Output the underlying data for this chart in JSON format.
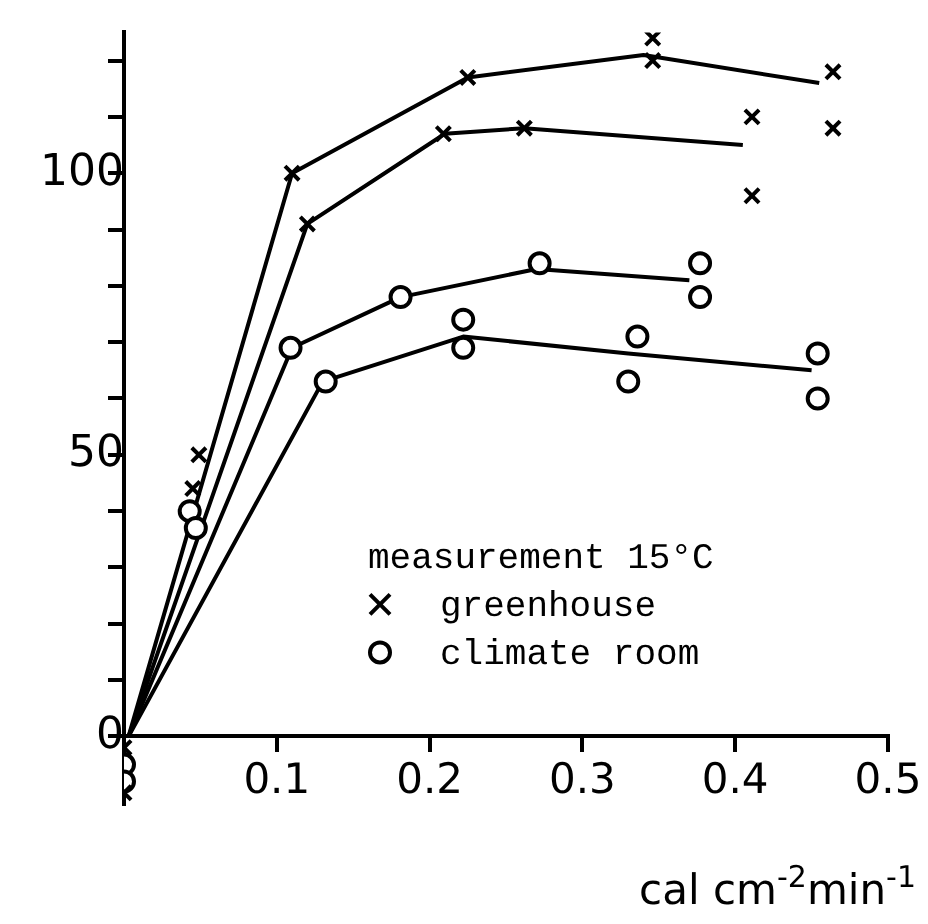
{
  "chart_data": {
    "type": "scatter",
    "xlabel": "cal cm$^{-2}$min$^{-1}$",
    "legend_title": "measurement 15°C",
    "legend": "bottom right",
    "xlim": [
      0,
      0.5
    ],
    "ylim": [
      -12,
      125
    ],
    "xticks": [
      0.1,
      0.2,
      0.3,
      0.4,
      0.5
    ],
    "yticks": [
      0,
      {
        "value": 10,
        "label": null
      },
      {
        "value": 20,
        "label": null
      },
      {
        "value": 30,
        "label": null
      },
      {
        "value": 40,
        "label": null
      },
      50,
      {
        "value": 60,
        "label": null
      },
      {
        "value": 70,
        "label": null
      },
      {
        "value": 80,
        "label": null
      },
      {
        "value": 90,
        "label": null
      },
      100,
      {
        "value": 110,
        "label": null
      },
      {
        "value": 120,
        "label": null
      }
    ],
    "grid": false,
    "series": [
      {
        "name": "greenhouse",
        "marker": "cross",
        "color": "#000000",
        "x": [
          0,
          0,
          0.049,
          0.045,
          0.11,
          0.12,
          0.209,
          0.225,
          0.262,
          0.346,
          0.346,
          0.411,
          0.411,
          0.464,
          0.464
        ],
        "values": [
          -2,
          -10,
          50,
          44,
          100,
          91,
          107,
          117,
          108,
          120,
          124,
          110,
          96,
          118,
          108
        ]
      },
      {
        "name": "climate room",
        "marker": "circle",
        "color": "#000000",
        "x": [
          0,
          0,
          0.043,
          0.047,
          0.109,
          0.132,
          0.181,
          0.222,
          0.222,
          0.272,
          0.33,
          0.336,
          0.377,
          0.377,
          0.454,
          0.454
        ],
        "values": [
          -5,
          -8,
          40,
          37,
          69,
          63,
          78,
          74,
          69,
          84,
          63,
          71,
          84,
          78,
          68,
          60
        ]
      },
      {
        "type": "line",
        "marker": "none",
        "color": "#000000",
        "x": [
          0.003,
          0.11,
          0.225,
          0.34,
          0.455
        ],
        "values": [
          0,
          100,
          117,
          121,
          116
        ]
      },
      {
        "type": "line",
        "marker": "none",
        "color": "#000000",
        "x": [
          0.003,
          0.12,
          0.21,
          0.262,
          0.405
        ],
        "values": [
          0,
          91,
          107,
          108,
          105
        ]
      },
      {
        "type": "line",
        "marker": "none",
        "color": "#000000",
        "x": [
          0.003,
          0.11,
          0.181,
          0.27,
          0.37
        ],
        "values": [
          0,
          69,
          78,
          83,
          81
        ]
      },
      {
        "type": "line",
        "marker": "none",
        "color": "#000000",
        "x": [
          0.003,
          0.13,
          0.222,
          0.33,
          0.45
        ],
        "values": [
          0,
          63,
          71,
          68,
          65
        ]
      }
    ]
  }
}
